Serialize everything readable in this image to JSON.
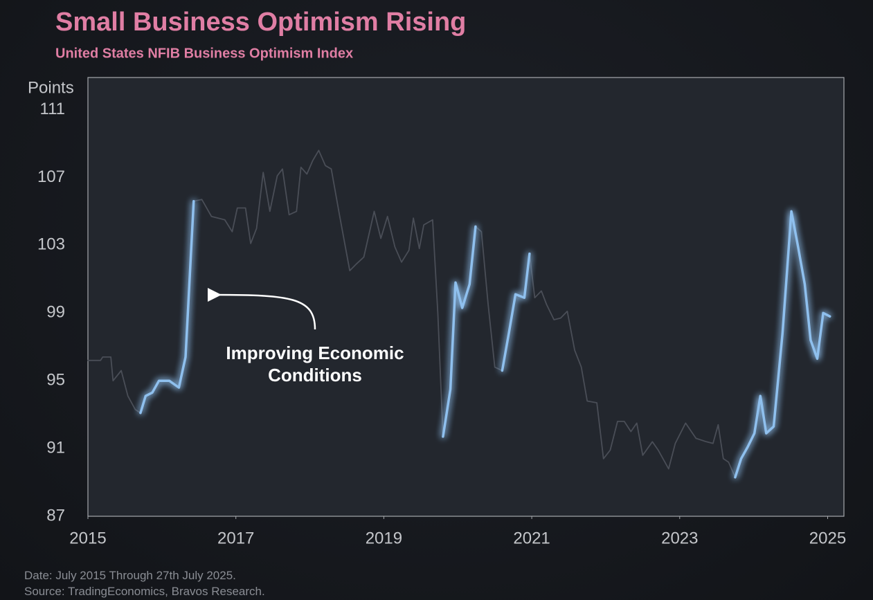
{
  "chart_data": {
    "type": "line",
    "title": "Small Business Optimism Rising",
    "subtitle": "United States NFIB Business Optimism Index",
    "y_label": "Points",
    "annotation": "Improving Economic Conditions",
    "notes": [
      "Date: July 2015 Through 27th July 2025.",
      "Source: TradingEconomics, Bravos Research."
    ],
    "x": [
      2015.0,
      2015.17,
      2015.2,
      2015.31,
      2015.34,
      2015.45,
      2015.54,
      2015.64,
      2015.71,
      2015.78,
      2015.87,
      2015.96,
      2016.1,
      2016.23,
      2016.32,
      2016.43,
      2016.54,
      2016.67,
      2016.85,
      2016.95,
      2017.02,
      2017.13,
      2017.2,
      2017.28,
      2017.37,
      2017.46,
      2017.56,
      2017.63,
      2017.72,
      2017.82,
      2017.88,
      2017.96,
      2018.04,
      2018.12,
      2018.21,
      2018.29,
      2018.4,
      2018.54,
      2018.63,
      2018.73,
      2018.87,
      2018.96,
      2019.05,
      2019.15,
      2019.24,
      2019.34,
      2019.4,
      2019.48,
      2019.54,
      2019.66,
      2019.73,
      2019.8,
      2019.9,
      2019.97,
      2020.06,
      2020.16,
      2020.24,
      2020.32,
      2020.41,
      2020.5,
      2020.6,
      2020.69,
      2020.78,
      2020.9,
      2020.97,
      2021.04,
      2021.13,
      2021.2,
      2021.3,
      2021.39,
      2021.48,
      2021.58,
      2021.67,
      2021.75,
      2021.88,
      2021.97,
      2022.06,
      2022.16,
      2022.25,
      2022.34,
      2022.42,
      2022.5,
      2022.63,
      2022.71,
      2022.85,
      2022.94,
      2023.08,
      2023.22,
      2023.36,
      2023.45,
      2023.52,
      2023.59,
      2023.66,
      2023.75,
      2023.83,
      2023.92,
      2024.01,
      2024.09,
      2024.17,
      2024.27,
      2024.39,
      2024.51,
      2024.6,
      2024.69,
      2024.77,
      2024.86,
      2024.94,
      2025.03
    ],
    "series": [
      {
        "color": "#4a4e57",
        "values": [
          96.2,
          96.2,
          96.4,
          96.4,
          95.0,
          95.6,
          94.1,
          93.3,
          93.1,
          94.1,
          94.3,
          95.0,
          95.0,
          94.6,
          96.4,
          105.6,
          105.7,
          104.7,
          104.5,
          103.8,
          105.2,
          105.2,
          103.1,
          104.0,
          107.3,
          105.0,
          107.1,
          107.5,
          104.8,
          105.0,
          107.6,
          107.2,
          108.0,
          108.6,
          107.7,
          107.5,
          104.8,
          101.5,
          101.9,
          102.3,
          105.0,
          103.4,
          104.7,
          102.9,
          102.0,
          102.7,
          104.6,
          102.8,
          104.2,
          104.5,
          99.0,
          91.7,
          94.5,
          100.8,
          99.3,
          100.7,
          104.1,
          103.8,
          99.5,
          95.8,
          95.6,
          97.8,
          100.1,
          99.9,
          102.5,
          99.9,
          100.3,
          99.5,
          98.6,
          98.7,
          99.1,
          96.8,
          95.8,
          93.8,
          93.7,
          90.4,
          90.9,
          92.6,
          92.6,
          92.0,
          92.5,
          90.6,
          91.4,
          90.9,
          89.8,
          91.3,
          92.5,
          91.6,
          91.4,
          91.3,
          92.4,
          90.4,
          90.2,
          89.3,
          90.4,
          91.1,
          91.9,
          94.1,
          91.9,
          92.3,
          97.8,
          105.0,
          102.9,
          100.7,
          97.4,
          96.3,
          99.0,
          98.8
        ]
      },
      {
        "color": "#8fc0ee",
        "glow": true,
        "values": [
          null,
          null,
          null,
          null,
          null,
          null,
          null,
          null,
          93.1,
          94.1,
          94.3,
          95.0,
          95.0,
          94.6,
          96.4,
          105.6,
          null,
          null,
          null,
          null,
          null,
          null,
          null,
          null,
          null,
          null,
          null,
          null,
          null,
          null,
          null,
          null,
          null,
          null,
          null,
          null,
          null,
          null,
          null,
          null,
          null,
          null,
          null,
          null,
          null,
          null,
          null,
          null,
          null,
          null,
          null,
          91.7,
          94.5,
          100.8,
          99.3,
          100.7,
          104.1,
          null,
          null,
          null,
          95.6,
          97.8,
          100.1,
          99.9,
          102.5,
          null,
          null,
          null,
          null,
          null,
          null,
          null,
          null,
          null,
          null,
          null,
          null,
          null,
          null,
          null,
          null,
          null,
          null,
          null,
          null,
          null,
          null,
          null,
          null,
          null,
          null,
          null,
          null,
          89.3,
          90.4,
          91.1,
          91.9,
          94.1,
          91.9,
          92.3,
          97.8,
          105.0,
          102.9,
          100.7,
          97.4,
          96.3,
          99.0,
          98.8
        ]
      }
    ],
    "xlim": [
      2015,
      2025.22
    ],
    "xticks": [
      2015,
      2017,
      2019,
      2021,
      2023,
      2025
    ],
    "ylim": [
      87,
      112.9
    ],
    "yticks": [
      87,
      91,
      95,
      99,
      103,
      107,
      111
    ],
    "grid": false
  }
}
